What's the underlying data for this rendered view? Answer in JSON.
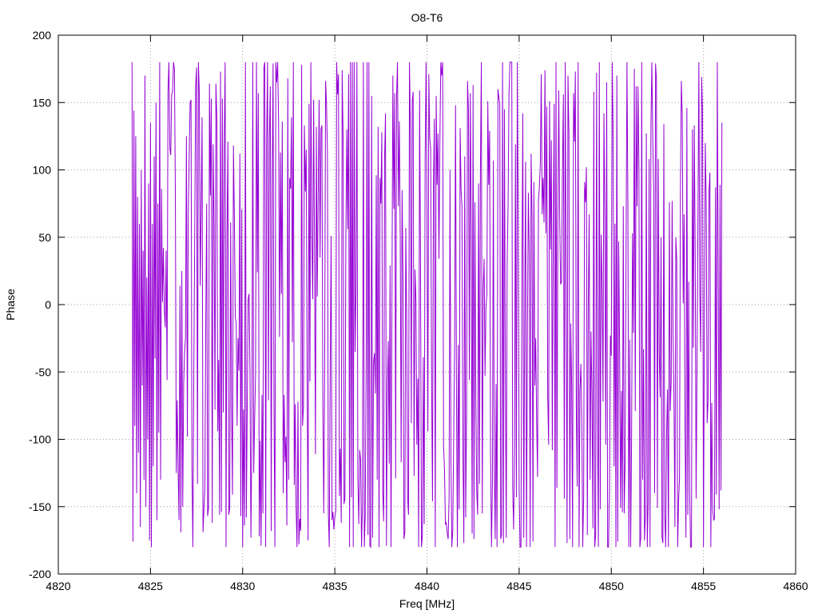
{
  "chart_data": {
    "type": "line",
    "title": "O8-T6",
    "xlabel": "Freq [MHz]",
    "ylabel": "Phase",
    "xlim": [
      4820,
      4860
    ],
    "ylim": [
      -200,
      200
    ],
    "x_ticks": [
      4820,
      4825,
      4830,
      4835,
      4840,
      4845,
      4850,
      4855,
      4860
    ],
    "y_ticks": [
      -200,
      -150,
      -100,
      -50,
      0,
      50,
      100,
      150,
      200
    ],
    "x_tick_labels": [
      "4820",
      "4825",
      "4830",
      "4835",
      "4840",
      "4845",
      "4850",
      "4855",
      "4860"
    ],
    "y_tick_labels": [
      "-200",
      "-150",
      "-100",
      "-50",
      "0",
      "50",
      "100",
      "150",
      "200"
    ],
    "grid": true,
    "legend": "none",
    "series": [
      {
        "color": "#9400d3",
        "x_start": 4824.0,
        "x_end": 4856.0,
        "step": 0.05,
        "points": [
          [
            4824.0,
            180
          ],
          [
            4824.05,
            -176
          ],
          [
            4824.1,
            144
          ],
          [
            4824.15,
            -90
          ],
          [
            4824.2,
            125
          ],
          [
            4824.25,
            -140
          ],
          [
            4824.3,
            80
          ],
          [
            4824.35,
            -110
          ],
          [
            4824.4,
            60
          ],
          [
            4824.45,
            -165
          ],
          [
            4824.5,
            100
          ],
          [
            4824.55,
            -60
          ],
          [
            4824.6,
            40
          ],
          [
            4824.65,
            -130
          ],
          [
            4824.7,
            170
          ],
          [
            4824.75,
            -150
          ],
          [
            4824.8,
            20
          ],
          [
            4824.85,
            -100
          ],
          [
            4824.9,
            90
          ],
          [
            4824.95,
            -175
          ],
          [
            4825.0,
            135
          ],
          [
            4825.05,
            -180
          ],
          [
            4825.1,
            60
          ],
          [
            4825.15,
            -120
          ],
          [
            4825.2,
            110
          ],
          [
            4825.25,
            -40
          ],
          [
            4825.3,
            150
          ],
          [
            4825.35,
            -160
          ],
          [
            4825.4,
            75
          ],
          [
            4825.45,
            -95
          ],
          [
            4825.5,
            180
          ],
          [
            4825.55,
            -130
          ]
        ]
      }
    ]
  }
}
